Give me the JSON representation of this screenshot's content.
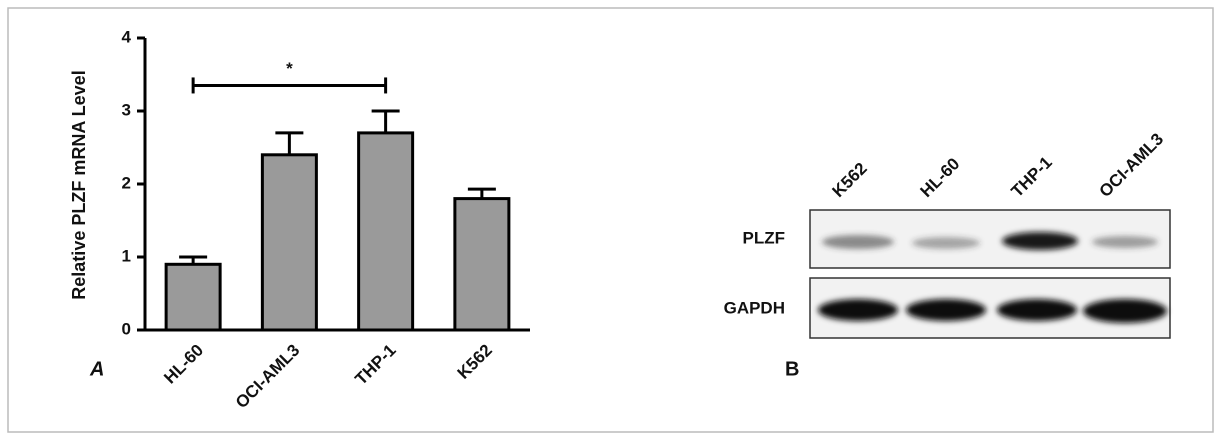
{
  "chart_data": {
    "type": "bar",
    "ylabel": "Relative PLZF mRNA Level",
    "panel_label": "A",
    "categories": [
      "HL-60",
      "OCI-AML3",
      "THP-1",
      "K562"
    ],
    "values": [
      0.9,
      2.4,
      2.7,
      1.8
    ],
    "errors": [
      0.1,
      0.3,
      0.3,
      0.13
    ],
    "color": "#9a9a9a",
    "ylim": [
      0,
      4
    ],
    "yticks": [
      0,
      1,
      2,
      3,
      4
    ],
    "annotations": [
      {
        "text": "*",
        "from": 0,
        "to": 2,
        "y": 3.35
      }
    ]
  },
  "blot": {
    "panel_label": "B",
    "lanes": [
      "K562",
      "HL-60",
      "THP-1",
      "OCI-AML3"
    ],
    "rows": [
      "PLZF",
      "GAPDH"
    ]
  }
}
